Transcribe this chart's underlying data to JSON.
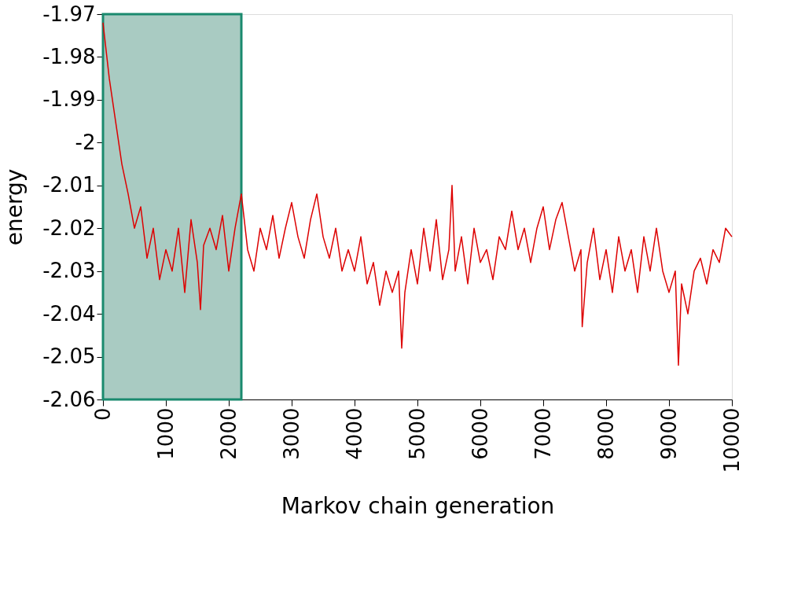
{
  "chart_data": {
    "type": "line",
    "xlabel": "Markov chain generation",
    "ylabel": "energy",
    "xlim": [
      0,
      10000
    ],
    "ylim": [
      -2.06,
      -1.97
    ],
    "xticks": [
      0,
      1000,
      2000,
      3000,
      4000,
      5000,
      6000,
      7000,
      8000,
      9000,
      10000
    ],
    "yticks": [
      -2.06,
      -2.05,
      -2.04,
      -2.03,
      -2.02,
      -2.01,
      -2,
      -1.99,
      -1.98,
      -1.97
    ],
    "marker": "none",
    "line_style": "solid",
    "bands": [
      {
        "axis": "x",
        "from": 0,
        "to": 2200,
        "color": "#a9cbc2"
      }
    ],
    "series": [
      {
        "color": "#dd0000",
        "x": [
          0,
          100,
          200,
          300,
          400,
          500,
          600,
          700,
          800,
          900,
          1000,
          1100,
          1200,
          1300,
          1400,
          1500,
          1550,
          1600,
          1700,
          1800,
          1900,
          2000,
          2100,
          2200,
          2300,
          2400,
          2500,
          2600,
          2700,
          2800,
          2900,
          3000,
          3100,
          3200,
          3300,
          3400,
          3500,
          3600,
          3700,
          3800,
          3900,
          4000,
          4100,
          4200,
          4300,
          4400,
          4500,
          4600,
          4700,
          4750,
          4800,
          4900,
          5000,
          5100,
          5200,
          5300,
          5400,
          5500,
          5550,
          5600,
          5700,
          5800,
          5900,
          6000,
          6100,
          6200,
          6300,
          6400,
          6500,
          6600,
          6700,
          6800,
          6900,
          7000,
          7100,
          7200,
          7300,
          7400,
          7500,
          7600,
          7620,
          7700,
          7800,
          7900,
          8000,
          8100,
          8200,
          8300,
          8400,
          8500,
          8600,
          8700,
          8800,
          8900,
          9000,
          9100,
          9150,
          9200,
          9300,
          9400,
          9500,
          9600,
          9700,
          9800,
          9900,
          10000
        ],
        "values": [
          -1.972,
          -1.985,
          -1.995,
          -2.005,
          -2.012,
          -2.02,
          -2.015,
          -2.027,
          -2.02,
          -2.032,
          -2.025,
          -2.03,
          -2.02,
          -2.035,
          -2.018,
          -2.028,
          -2.039,
          -2.024,
          -2.02,
          -2.025,
          -2.017,
          -2.03,
          -2.02,
          -2.012,
          -2.025,
          -2.03,
          -2.02,
          -2.025,
          -2.017,
          -2.027,
          -2.02,
          -2.014,
          -2.022,
          -2.027,
          -2.018,
          -2.012,
          -2.022,
          -2.027,
          -2.02,
          -2.03,
          -2.025,
          -2.03,
          -2.022,
          -2.033,
          -2.028,
          -2.038,
          -2.03,
          -2.035,
          -2.03,
          -2.048,
          -2.035,
          -2.025,
          -2.033,
          -2.02,
          -2.03,
          -2.018,
          -2.032,
          -2.025,
          -2.01,
          -2.03,
          -2.022,
          -2.033,
          -2.02,
          -2.028,
          -2.025,
          -2.032,
          -2.022,
          -2.025,
          -2.016,
          -2.025,
          -2.02,
          -2.028,
          -2.02,
          -2.015,
          -2.025,
          -2.018,
          -2.014,
          -2.022,
          -2.03,
          -2.025,
          -2.043,
          -2.028,
          -2.02,
          -2.032,
          -2.025,
          -2.035,
          -2.022,
          -2.03,
          -2.025,
          -2.035,
          -2.022,
          -2.03,
          -2.02,
          -2.03,
          -2.035,
          -2.03,
          -2.052,
          -2.033,
          -2.04,
          -2.03,
          -2.027,
          -2.033,
          -2.025,
          -2.028,
          -2.02,
          -2.022
        ]
      }
    ]
  }
}
